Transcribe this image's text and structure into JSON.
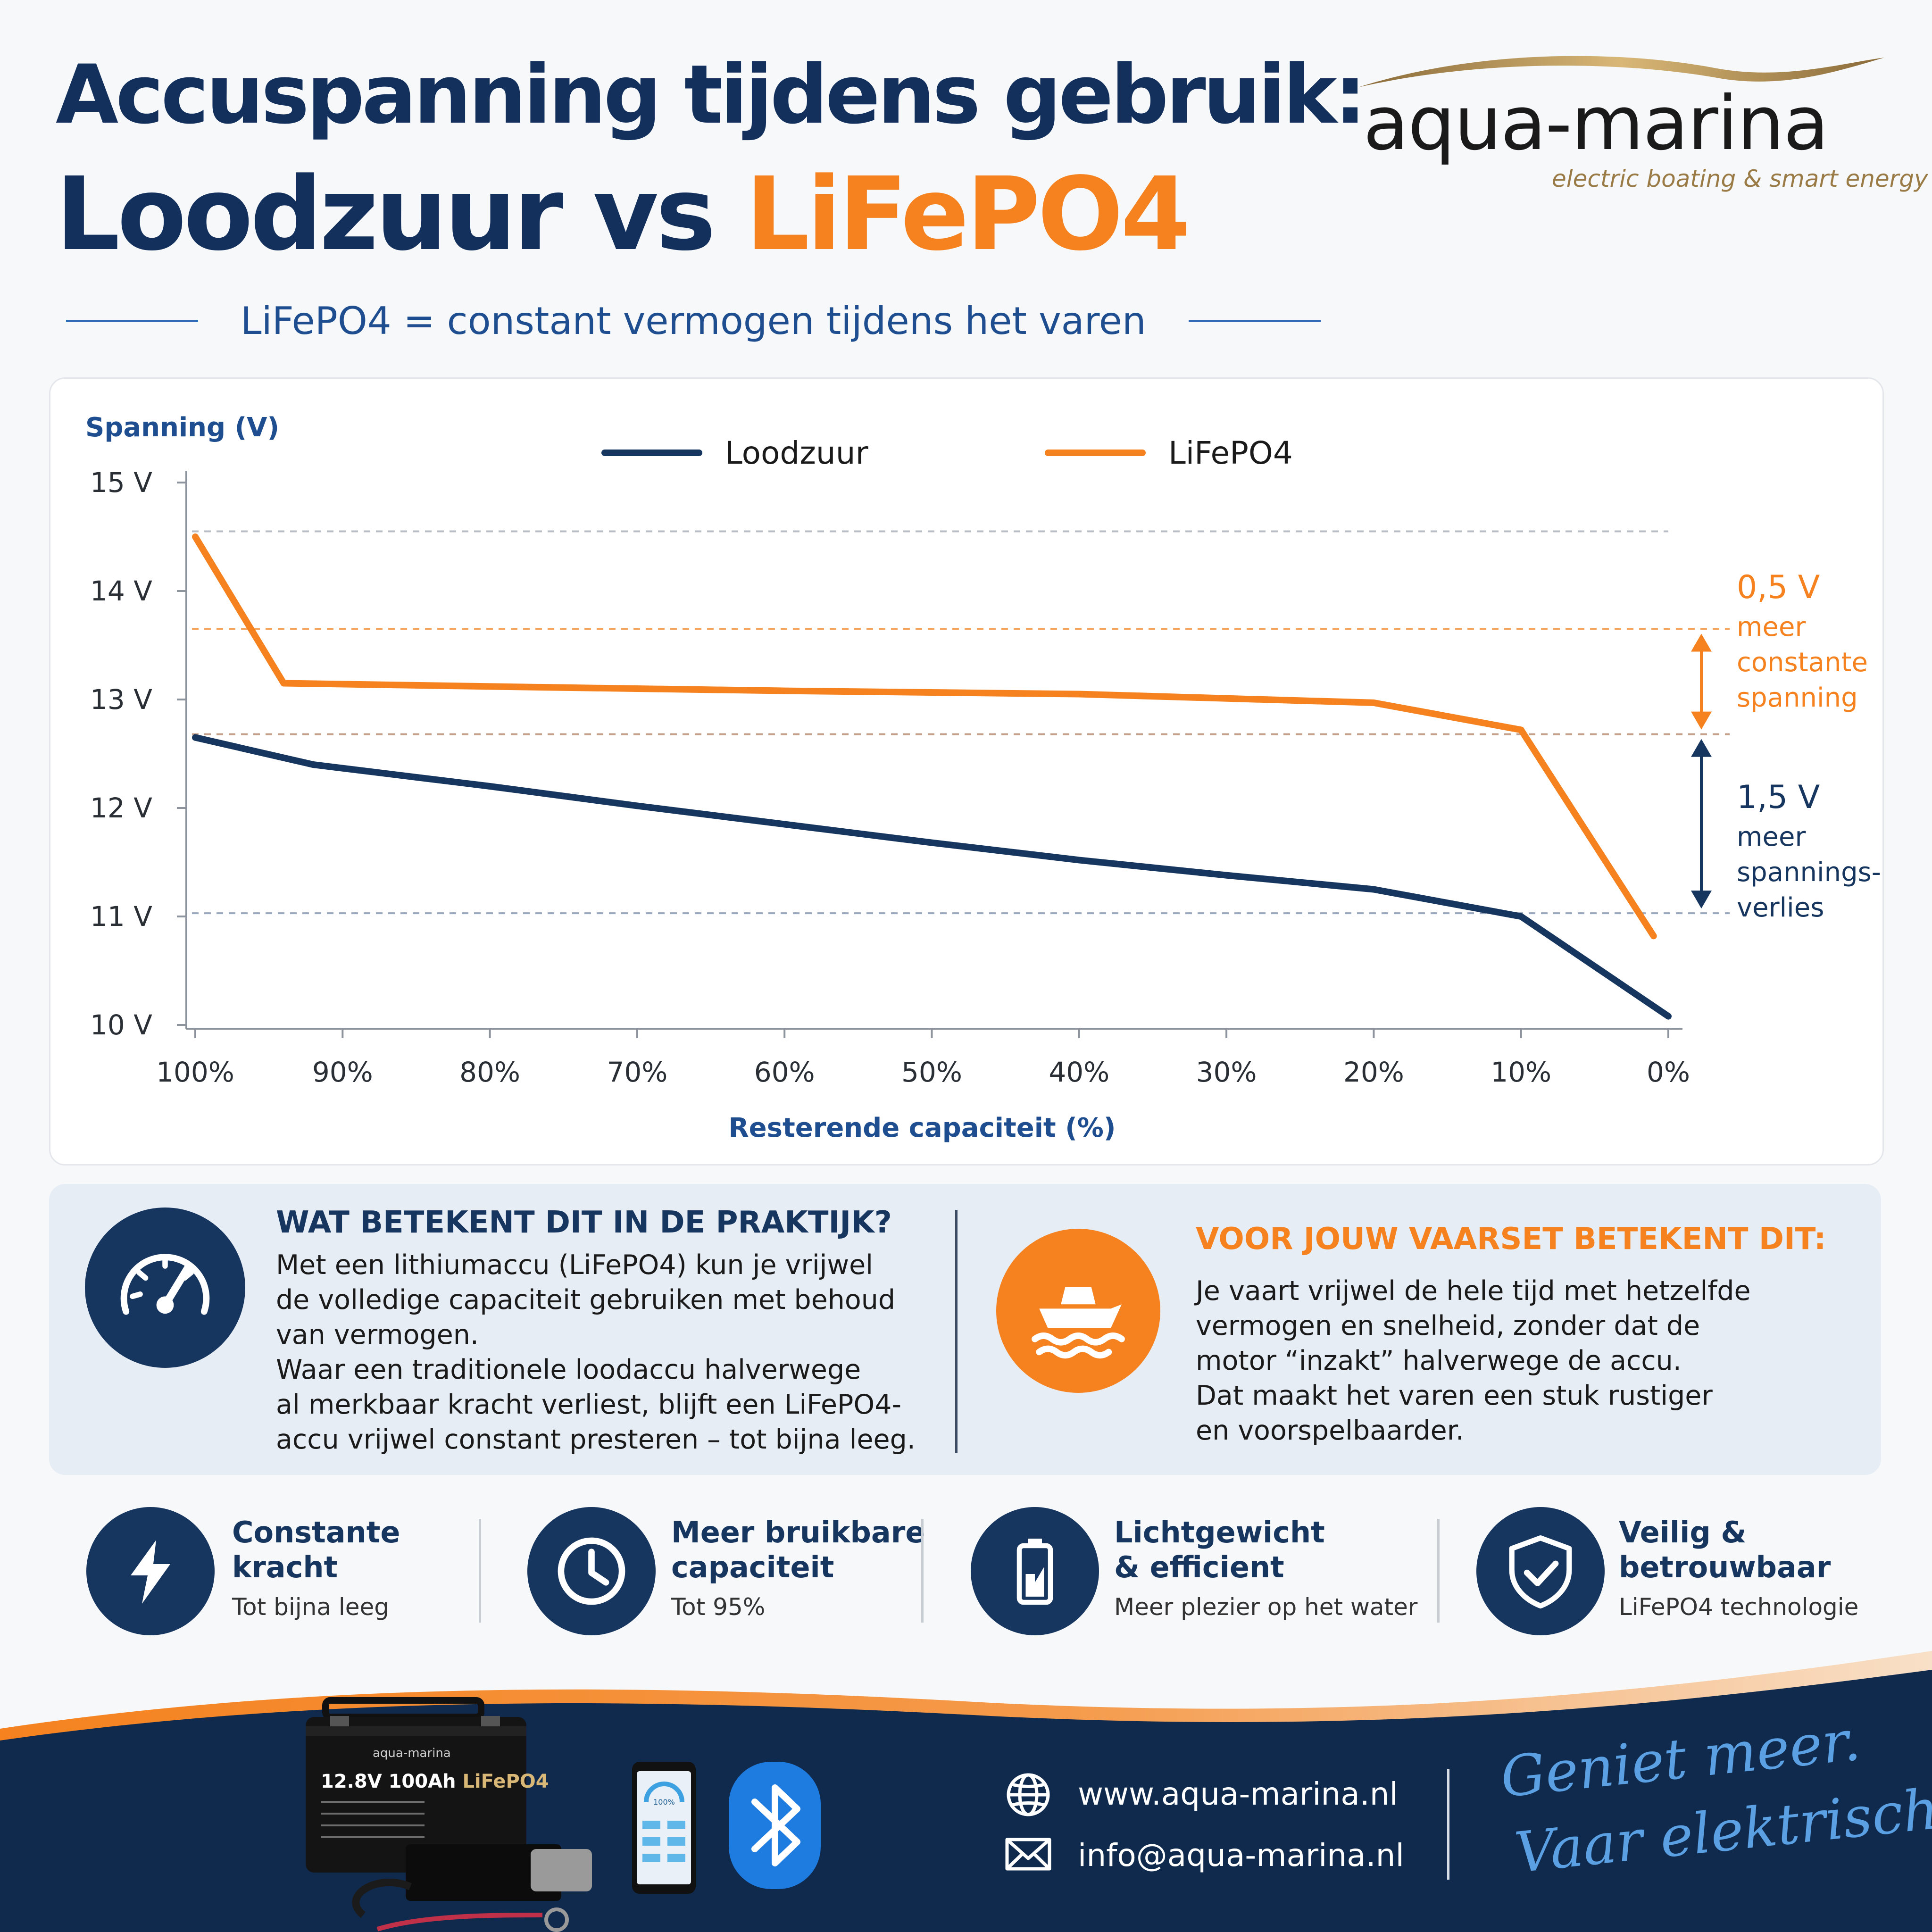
{
  "header": {
    "title_line1": "Accuspanning tijdens gebruik:",
    "title_line2_part1": "Loodzuur vs ",
    "title_line2_part2": "LiFePO4",
    "subtitle": "LiFePO4 = constant vermogen tijdens het varen"
  },
  "logo": {
    "word": "aqua-marina",
    "tagline": "electric boating & smart energy"
  },
  "colors": {
    "navy": "#17365f",
    "orange": "#f5821f",
    "lightblue": "#5aa0e3",
    "panel": "#e7edf5"
  },
  "chart_data": {
    "type": "line",
    "title": "",
    "ylabel": "Spanning (V)",
    "xlabel": "Resterende capaciteit (%)",
    "ylim": [
      10,
      15
    ],
    "xlim": [
      100,
      0
    ],
    "x_ticks": [
      "100%",
      "90%",
      "80%",
      "70%",
      "60%",
      "50%",
      "40%",
      "30%",
      "20%",
      "10%",
      "0%"
    ],
    "y_ticks": [
      "15 V",
      "14 V",
      "13 V",
      "12 V",
      "11 V",
      "10 V"
    ],
    "legend_position": "top",
    "grid": false,
    "series": [
      {
        "name": "Loodzuur",
        "color": "#17365f",
        "x": [
          100,
          92,
          80,
          70,
          60,
          50,
          40,
          30,
          20,
          10,
          0
        ],
        "y": [
          12.65,
          12.4,
          12.2,
          12.02,
          11.85,
          11.68,
          11.52,
          11.38,
          11.25,
          11.0,
          10.08
        ]
      },
      {
        "name": "LiFePO4",
        "color": "#f5821f",
        "x": [
          100,
          94,
          80,
          60,
          40,
          20,
          10,
          1
        ],
        "y": [
          14.5,
          13.15,
          13.12,
          13.08,
          13.05,
          12.97,
          12.72,
          10.82
        ]
      }
    ],
    "reference_lines": [
      14.55,
      13.65,
      12.68,
      11.03
    ],
    "annotations": [
      {
        "value": "0,5 V",
        "lines": [
          "meer",
          "constante",
          "spanning"
        ],
        "color": "#f5821f",
        "from": 13.65,
        "to": 12.68
      },
      {
        "value": "1,5 V",
        "lines": [
          "meer",
          "spannings-",
          "verlies"
        ],
        "color": "#17365f",
        "from": 12.68,
        "to": 11.03
      }
    ]
  },
  "info": {
    "left": {
      "icon": "speedometer-icon",
      "heading": "WAT BETEKENT DIT IN DE PRAKTIJK?",
      "lines": [
        "Met een lithiumaccu (LiFePO4) kun je vrijwel",
        "de volledige capaciteit gebruiken met behoud",
        "van vermogen.",
        "Waar een traditionele loodaccu halverwege",
        "al merkbaar kracht verliest, blijft een LiFePO4-",
        "accu vrijwel constant presteren – tot bijna leeg."
      ]
    },
    "right": {
      "icon": "boat-icon",
      "heading": "VOOR JOUW VAARSET BETEKENT DIT:",
      "lines": [
        "Je vaart vrijwel de hele tijd met hetzelfde",
        "vermogen en snelheid, zonder dat de",
        "motor “inzakt” halverwege de accu.",
        "Dat maakt het varen een stuk rustiger",
        "en voorspelbaarder."
      ]
    }
  },
  "features": [
    {
      "icon": "lightning-icon",
      "title1": "Constante",
      "title2": "kracht",
      "sub": "Tot bijna leeg"
    },
    {
      "icon": "clock-icon",
      "title1": "Meer bruikbare",
      "title2": "capaciteit",
      "sub": "Tot 95%"
    },
    {
      "icon": "battery-icon",
      "title1": "Lichtgewicht",
      "title2": "& efficient",
      "sub": "Meer plezier op het water"
    },
    {
      "icon": "shield-check-icon",
      "title1": "Veilig &",
      "title2": "betrouwbaar",
      "sub": "LiFePO4 technologie"
    }
  ],
  "footer": {
    "battery_brand": "aqua-marina",
    "battery_label_part1": "12.8V 100Ah ",
    "battery_label_part2": "LiFePO4",
    "phone_readout": "100%",
    "website": "www.aqua-marina.nl",
    "email": "info@aqua-marina.nl",
    "slogan_line1": "Geniet meer.",
    "slogan_line2": "Vaar elektrisch."
  }
}
